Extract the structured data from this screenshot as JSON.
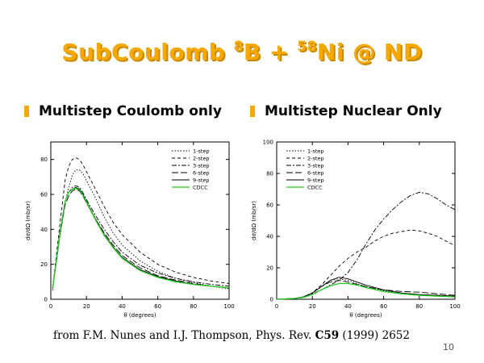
{
  "slide": {
    "title": {
      "pre": "SubCoulomb ",
      "sup1": "8",
      "mid": "B + ",
      "sup2": "58",
      "post": "Ni @ ND"
    },
    "bullets": [
      "Multistep Coulomb only",
      "Multistep Nuclear Only"
    ],
    "citation": {
      "authors": "from F.M. Nunes  and I.J. Thompson,",
      "journal": "Phys. Rev.",
      "volume": "C59",
      "rest": "(1999) 2652"
    },
    "page_number": "10",
    "accent_color": "#f5a800"
  },
  "chart_data": [
    {
      "type": "line",
      "xlabel": "θ (degrees)",
      "ylabel": "dσ/dΩ (mb/sr)",
      "xlim": [
        0,
        100
      ],
      "ylim": [
        0,
        90
      ],
      "xticks": [
        0,
        20,
        40,
        60,
        80,
        100
      ],
      "yticks": [
        0,
        20,
        40,
        60,
        80
      ],
      "legend_position": "top-right",
      "series": [
        {
          "name": "1-step",
          "dash": "1.5,2",
          "color": "#000000",
          "x": [
            1,
            5,
            8,
            10,
            12,
            14,
            16,
            18,
            20,
            25,
            30,
            35,
            40,
            50,
            60,
            70,
            80,
            90,
            100
          ],
          "y": [
            5,
            35,
            55,
            64,
            71,
            74,
            74,
            72,
            68,
            58,
            47,
            38,
            31,
            22,
            16,
            12,
            9.5,
            7.5,
            6
          ]
        },
        {
          "name": "2-step",
          "dash": "4,3",
          "color": "#000000",
          "x": [
            1,
            5,
            8,
            10,
            12,
            14,
            16,
            18,
            20,
            25,
            30,
            35,
            40,
            50,
            60,
            70,
            80,
            90,
            100
          ],
          "y": [
            6,
            42,
            68,
            76,
            80,
            81,
            80,
            77,
            73,
            63,
            53,
            44,
            37,
            27,
            20,
            15.5,
            12.5,
            10.5,
            9
          ]
        },
        {
          "name": "3-step",
          "dash": "6,2,2,2",
          "color": "#000000",
          "x": [
            1,
            5,
            8,
            10,
            12,
            14,
            16,
            18,
            20,
            25,
            30,
            35,
            40,
            50,
            60,
            70,
            80,
            90,
            100
          ],
          "y": [
            6,
            38,
            56,
            61,
            64,
            65,
            64,
            61,
            57,
            48,
            40,
            33,
            27,
            19.5,
            15,
            12,
            10,
            8.5,
            7.5
          ]
        },
        {
          "name": "6-step",
          "dash": "8,3",
          "color": "#000000",
          "x": [
            1,
            5,
            8,
            10,
            12,
            14,
            16,
            18,
            20,
            25,
            30,
            35,
            40,
            50,
            60,
            70,
            80,
            90,
            100
          ],
          "y": [
            6,
            36,
            54,
            59,
            62,
            63,
            62,
            59,
            55,
            46,
            38,
            31,
            25,
            18,
            13.5,
            11,
            9,
            7.5,
            6.5
          ]
        },
        {
          "name": "9-step",
          "dash": "none",
          "color": "#000000",
          "x": [
            1,
            5,
            8,
            10,
            12,
            14,
            16,
            18,
            20,
            25,
            30,
            35,
            40,
            50,
            60,
            70,
            80,
            90,
            100
          ],
          "y": [
            6,
            37,
            56,
            61,
            63,
            64,
            63,
            60,
            56,
            46,
            37,
            30,
            24,
            17,
            13,
            10.5,
            8.5,
            7.5,
            6.5
          ]
        },
        {
          "name": "CDCC",
          "dash": "none",
          "color": "#22cc22",
          "x": [
            1,
            5,
            8,
            10,
            12,
            14,
            16,
            18,
            20,
            25,
            30,
            35,
            40,
            50,
            60,
            70,
            80,
            90,
            100
          ],
          "y": [
            6,
            37,
            56,
            61,
            63,
            63.5,
            62.5,
            59.5,
            55.5,
            45.5,
            36.5,
            29.5,
            23.5,
            16.5,
            12.5,
            10,
            8.5,
            7.5,
            6.5
          ]
        }
      ]
    },
    {
      "type": "line",
      "xlabel": "θ (degrees)",
      "ylabel": "dσ/dΩ (mb/sr)",
      "xlim": [
        0,
        100
      ],
      "ylim": [
        0,
        100
      ],
      "xticks": [
        0,
        20,
        40,
        60,
        80,
        100
      ],
      "yticks": [
        0,
        20,
        40,
        60,
        80,
        100
      ],
      "legend_position": "top-left",
      "series": [
        {
          "name": "1-step",
          "dash": "1.5,2",
          "color": "#000000",
          "x": [
            0,
            10,
            15,
            20,
            25,
            30,
            35,
            40,
            45,
            50,
            60,
            70,
            80,
            90,
            100
          ],
          "y": [
            0,
            0.5,
            1.5,
            4,
            8,
            12,
            13,
            12,
            10,
            8,
            5.5,
            4,
            3,
            2.5,
            2
          ]
        },
        {
          "name": "2-step",
          "dash": "4,3",
          "color": "#000000",
          "x": [
            0,
            10,
            15,
            20,
            25,
            30,
            35,
            40,
            45,
            50,
            55,
            60,
            65,
            70,
            75,
            80,
            85,
            90,
            95,
            100
          ],
          "y": [
            0,
            0.5,
            1.5,
            4,
            9,
            15,
            21,
            26,
            30,
            33,
            37,
            40,
            42,
            43,
            44,
            43.5,
            42,
            40,
            37,
            34
          ]
        },
        {
          "name": "3-step",
          "dash": "6,2,2,2",
          "color": "#000000",
          "x": [
            0,
            10,
            15,
            20,
            25,
            30,
            35,
            40,
            45,
            50,
            55,
            60,
            65,
            70,
            75,
            80,
            85,
            90,
            95,
            100
          ],
          "y": [
            0,
            0.5,
            1.5,
            3.5,
            6,
            9,
            12,
            17,
            25,
            35,
            44,
            51,
            57,
            62,
            66,
            68,
            67,
            64,
            60,
            57
          ]
        },
        {
          "name": "6-step",
          "dash": "8,3",
          "color": "#000000",
          "x": [
            0,
            10,
            15,
            20,
            25,
            30,
            35,
            40,
            45,
            50,
            60,
            70,
            80,
            90,
            100
          ],
          "y": [
            0,
            0.5,
            1.5,
            4,
            8,
            11,
            12,
            11,
            9.5,
            8,
            6,
            5,
            4.5,
            3.5,
            2.5
          ]
        },
        {
          "name": "9-step",
          "dash": "none",
          "color": "#000000",
          "x": [
            0,
            10,
            15,
            20,
            25,
            30,
            35,
            40,
            45,
            50,
            60,
            70,
            80,
            90,
            100
          ],
          "y": [
            0,
            0.5,
            1.5,
            4,
            8,
            12,
            14,
            13,
            11,
            9,
            6,
            4,
            3,
            2.5,
            2
          ]
        },
        {
          "name": "CDCC",
          "dash": "none",
          "color": "#22cc22",
          "x": [
            0,
            10,
            15,
            20,
            25,
            30,
            35,
            40,
            45,
            50,
            60,
            70,
            80,
            90,
            100
          ],
          "y": [
            0,
            0.5,
            1.2,
            3,
            6,
            8.5,
            10,
            10,
            9,
            7.5,
            5,
            3.5,
            2.5,
            2,
            1.5
          ]
        }
      ]
    }
  ]
}
